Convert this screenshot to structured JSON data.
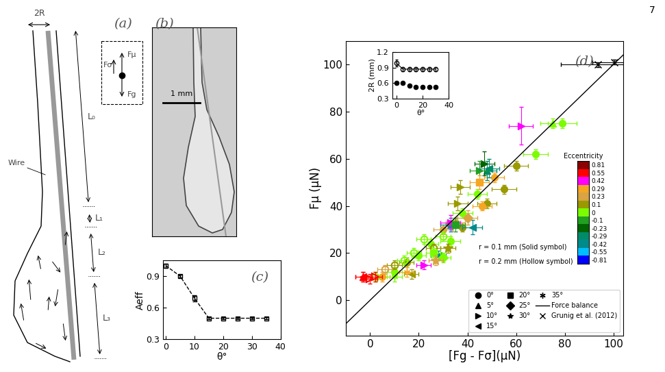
{
  "page_number": "7",
  "panel_a": {
    "label": "(a)",
    "diameter": "2R",
    "wire": "Wire",
    "lengths": [
      "L₀",
      "L₁",
      "L₂",
      "L₃"
    ],
    "forces": [
      "Fσ",
      "Fμ",
      "Fg"
    ]
  },
  "panel_b": {
    "label": "(b)",
    "scale_bar": "1 mm"
  },
  "chart_data": [
    {
      "type": "line",
      "annotations": [
        "(c)"
      ],
      "x_label": "θ°",
      "y_label": "Aeff",
      "x": [
        0,
        5,
        10,
        15,
        20,
        25,
        30,
        35
      ],
      "y": [
        1.0,
        0.9,
        0.69,
        0.5,
        0.5,
        0.5,
        0.5,
        0.5
      ],
      "yerr": [
        0.02,
        0.015,
        0.03,
        0.01,
        0.01,
        0.01,
        0.01,
        0.01
      ],
      "color": "black",
      "marker": "square_open",
      "line_style": "dashed",
      "xlim": [
        -1,
        40
      ],
      "ylim": [
        0.3,
        1.05
      ],
      "xticks": [
        0,
        10,
        20,
        30,
        40
      ],
      "yticks": [
        0.3,
        0.6,
        0.9
      ]
    },
    {
      "type": "scatter",
      "x_label": "θ°",
      "y_label": "2R (mm)",
      "xlim": [
        -3,
        40
      ],
      "ylim": [
        0.3,
        1.2
      ],
      "xticks": [
        0,
        20,
        40
      ],
      "yticks": [
        0.3,
        0.6,
        0.9,
        1.2
      ],
      "series": [
        {
          "marker": "circle_open",
          "color": "black",
          "line_style": "solid",
          "x": [
            0,
            5,
            10,
            15,
            20,
            25,
            30
          ],
          "y": [
            0.99,
            0.87,
            0.87,
            0.87,
            0.87,
            0.87,
            0.87
          ],
          "yerr": [
            0.07,
            0.04,
            0.04,
            0.04,
            0.04,
            0.04,
            0.04
          ]
        },
        {
          "marker": "circle",
          "color": "black",
          "line_style": "none",
          "x": [
            0,
            5,
            10,
            15,
            20,
            25,
            30
          ],
          "y": [
            0.6,
            0.6,
            0.55,
            0.52,
            0.53,
            0.52,
            0.52
          ],
          "yerr": [
            0.02,
            0.02,
            0.02,
            0.02,
            0.02,
            0.02,
            0.02
          ]
        }
      ]
    },
    {
      "type": "scatter",
      "annotations": [
        "(d)",
        "r = 0.1 mm (Solid symbol)",
        "r = 0.2 mm (Hollow symbol)"
      ],
      "x_label": "[Fg - Fσ](μN)",
      "y_label": "Fμ (μN)",
      "xlim": [
        -10,
        104
      ],
      "ylim": [
        -15,
        110
      ],
      "xticks": [
        0,
        20,
        40,
        60,
        80,
        100
      ],
      "yticks": [
        0,
        20,
        40,
        60,
        80,
        100
      ],
      "legend": "lower right",
      "colorbar": {
        "title": "Eccentricity",
        "levels": [
          0.81,
          0.55,
          0.42,
          0.29,
          0.23,
          0.1,
          0,
          -0.1,
          -0.23,
          -0.29,
          -0.42,
          -0.55,
          -0.81
        ],
        "colors": [
          "#8b0000",
          "#ff0000",
          "#ff00ff",
          "#f5a623",
          "#d9a441",
          "#9a9a00",
          "#7cfc00",
          "#22a022",
          "#006400",
          "#008b6b",
          "#008b8b",
          "#00bfff",
          "#0000ff"
        ]
      },
      "series": [
        {
          "name": "0°",
          "marker": "circle",
          "x": [
            68,
            79,
            60,
            55,
            48,
            51,
            46,
            38,
            33,
            30,
            25,
            20,
            15,
            10,
            5,
            38,
            35,
            44
          ],
          "y": [
            62,
            75,
            57,
            47,
            41,
            52,
            40,
            37,
            25,
            30,
            24,
            19,
            16,
            12,
            10,
            31,
            33,
            45
          ],
          "xerr": [
            5,
            6,
            5,
            5,
            4,
            4,
            4,
            4,
            4,
            4,
            3,
            3,
            3,
            3,
            3,
            4,
            4,
            4
          ],
          "yerr": [
            2,
            2,
            2,
            2,
            2,
            2,
            2,
            2,
            2,
            2,
            2,
            2,
            2,
            2,
            2,
            2,
            2,
            2
          ],
          "eccentricity": [
            0,
            0,
            0.1,
            0.1,
            0.1,
            0.29,
            0.29,
            0,
            0,
            0.23,
            0,
            0,
            0.1,
            0,
            0.29,
            0.1,
            0.23,
            0
          ]
        },
        {
          "name": "0°",
          "marker": "circle_open",
          "x": [
            22,
            18,
            14,
            10,
            6,
            2,
            26,
            30
          ],
          "y": [
            26,
            20,
            17,
            15,
            13,
            10,
            22,
            27
          ],
          "xerr": [
            3,
            3,
            3,
            3,
            3,
            3,
            3,
            3
          ],
          "yerr": [
            2,
            2,
            2,
            2,
            2,
            2,
            2,
            2
          ],
          "eccentricity": [
            0,
            0,
            0,
            0.1,
            0.23,
            0,
            0.1,
            0
          ]
        },
        {
          "name": "5°",
          "marker": "triangle_up",
          "x": [
            75,
            48,
            33,
            -3
          ],
          "y": [
            75,
            55,
            32,
            10
          ],
          "xerr": [
            5,
            4,
            4,
            3
          ],
          "yerr": [
            2,
            4,
            3,
            2
          ],
          "eccentricity": [
            0,
            -0.29,
            -0.42,
            0.55
          ]
        },
        {
          "name": "10°",
          "marker": "triangle_right",
          "x": [
            62,
            37,
            36,
            47,
            45,
            33,
            22
          ],
          "y": [
            74,
            48,
            41,
            58,
            55,
            33,
            15
          ],
          "xerr": [
            5,
            4,
            4,
            4,
            4,
            4,
            3
          ],
          "yerr": [
            8,
            3,
            3,
            5,
            4,
            3,
            2
          ],
          "eccentricity": [
            0.42,
            0.1,
            0.1,
            -0.23,
            -0.1,
            0.42,
            0.42
          ]
        },
        {
          "name": "10°",
          "marker": "triangle_right_open",
          "x": [
            0,
            2
          ],
          "y": [
            9,
            10
          ],
          "xerr": [
            3,
            3
          ],
          "yerr": [
            2,
            2
          ],
          "eccentricity": [
            0.55,
            0.55
          ]
        },
        {
          "name": "15°",
          "marker": "triangle_left",
          "x": [
            49,
            42,
            28,
            17,
            -3
          ],
          "y": [
            56,
            31,
            19,
            11,
            10
          ],
          "xerr": [
            4,
            4,
            3,
            3,
            3
          ],
          "yerr": [
            4,
            3,
            2,
            2,
            2
          ],
          "eccentricity": [
            -0.29,
            -0.42,
            -0.42,
            0.1,
            0.55
          ]
        },
        {
          "name": "20°",
          "marker": "square",
          "x": [
            35,
            26,
            45
          ],
          "y": [
            32,
            20,
            50
          ],
          "xerr": [
            4,
            3,
            4
          ],
          "yerr": [
            3,
            2,
            3
          ],
          "eccentricity": [
            -0.1,
            0,
            0.29
          ]
        },
        {
          "name": "25°",
          "marker": "diamond",
          "x": [
            40,
            30
          ],
          "y": [
            35,
            18
          ],
          "xerr": [
            4,
            3
          ],
          "yerr": [
            3,
            2
          ],
          "eccentricity": [
            0.23,
            0
          ]
        },
        {
          "name": "30°",
          "marker": "star",
          "x": [
            32,
            27
          ],
          "y": [
            22,
            17
          ],
          "xerr": [
            3,
            3
          ],
          "yerr": [
            2,
            2
          ],
          "eccentricity": [
            0.1,
            0.23
          ]
        },
        {
          "name": "35°",
          "marker": "asterisk",
          "x": [
            15,
            10
          ],
          "y": [
            12,
            10
          ],
          "xerr": [
            3,
            3
          ],
          "yerr": [
            2,
            2
          ],
          "eccentricity": [
            0.29,
            0
          ]
        },
        {
          "name": "Force balance",
          "type": "line",
          "color": "black",
          "line_style": "solid",
          "x": [
            -10,
            110
          ],
          "y": [
            -10,
            110
          ]
        },
        {
          "name": "Grunig et al. (2012)",
          "marker": "x",
          "color": "black",
          "x": [
            93.5,
            100.5
          ],
          "y": [
            100,
            101
          ],
          "xerr": [
            15,
            9
          ],
          "yerr": [
            1,
            1
          ]
        }
      ]
    }
  ]
}
